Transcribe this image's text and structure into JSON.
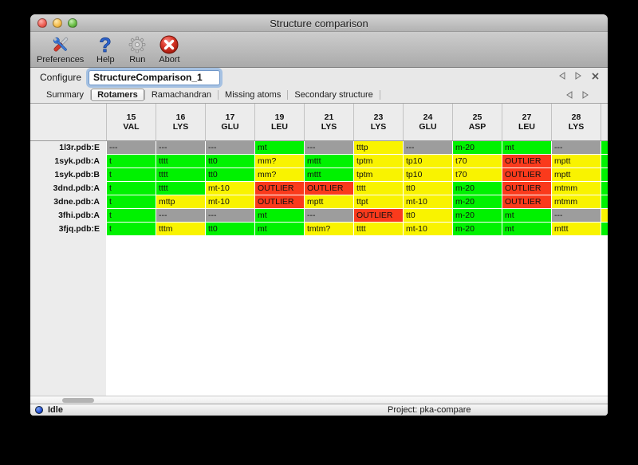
{
  "window": {
    "title": "Structure comparison"
  },
  "toolbar": {
    "items": [
      {
        "label": "Preferences",
        "icon": "tools-icon"
      },
      {
        "label": "Help",
        "icon": "help-icon"
      },
      {
        "label": "Run",
        "icon": "gear-icon"
      },
      {
        "label": "Abort",
        "icon": "abort-icon"
      }
    ]
  },
  "configure": {
    "label": "Configure",
    "value": "StructureComparison_1"
  },
  "tabs": {
    "items": [
      "Summary",
      "Rotamers",
      "Ramachandran",
      "Missing atoms",
      "Secondary structure"
    ],
    "selected": "Rotamers"
  },
  "table": {
    "columns": [
      {
        "num": "15",
        "res": "VAL"
      },
      {
        "num": "16",
        "res": "LYS"
      },
      {
        "num": "17",
        "res": "GLU"
      },
      {
        "num": "19",
        "res": "LEU"
      },
      {
        "num": "21",
        "res": "LYS"
      },
      {
        "num": "23",
        "res": "LYS"
      },
      {
        "num": "24",
        "res": "GLU"
      },
      {
        "num": "25",
        "res": "ASP"
      },
      {
        "num": "27",
        "res": "LEU"
      },
      {
        "num": "28",
        "res": "LYS"
      }
    ],
    "rows": [
      {
        "name": "1l3r.pdb:E",
        "cells": [
          [
            "---",
            "gray"
          ],
          [
            "---",
            "gray"
          ],
          [
            "---",
            "gray"
          ],
          [
            "mt",
            "green"
          ],
          [
            "---",
            "gray"
          ],
          [
            "tttp",
            "yellow"
          ],
          [
            "---",
            "gray"
          ],
          [
            "m-20",
            "green"
          ],
          [
            "mt",
            "green"
          ],
          [
            "---",
            "gray"
          ]
        ],
        "edge": "green"
      },
      {
        "name": "1syk.pdb:A",
        "cells": [
          [
            "t",
            "green"
          ],
          [
            "tttt",
            "green"
          ],
          [
            "tt0",
            "green"
          ],
          [
            "mm?",
            "yellow"
          ],
          [
            "mttt",
            "green"
          ],
          [
            "tptm",
            "yellow"
          ],
          [
            "tp10",
            "yellow"
          ],
          [
            "t70",
            "yellow"
          ],
          [
            "OUTLIER",
            "red"
          ],
          [
            "mptt",
            "yellow"
          ]
        ],
        "edge": "green"
      },
      {
        "name": "1syk.pdb:B",
        "cells": [
          [
            "t",
            "green"
          ],
          [
            "tttt",
            "green"
          ],
          [
            "tt0",
            "green"
          ],
          [
            "mm?",
            "yellow"
          ],
          [
            "mttt",
            "green"
          ],
          [
            "tptm",
            "yellow"
          ],
          [
            "tp10",
            "yellow"
          ],
          [
            "t70",
            "yellow"
          ],
          [
            "OUTLIER",
            "red"
          ],
          [
            "mptt",
            "yellow"
          ]
        ],
        "edge": "green"
      },
      {
        "name": "3dnd.pdb:A",
        "cells": [
          [
            "t",
            "green"
          ],
          [
            "tttt",
            "green"
          ],
          [
            "mt-10",
            "yellow"
          ],
          [
            "OUTLIER",
            "red"
          ],
          [
            "OUTLIER",
            "red"
          ],
          [
            "tttt",
            "yellow"
          ],
          [
            "tt0",
            "yellow"
          ],
          [
            "m-20",
            "green"
          ],
          [
            "OUTLIER",
            "red"
          ],
          [
            "mtmm",
            "yellow"
          ]
        ],
        "edge": "green"
      },
      {
        "name": "3dne.pdb:A",
        "cells": [
          [
            "t",
            "green"
          ],
          [
            "mttp",
            "yellow"
          ],
          [
            "mt-10",
            "yellow"
          ],
          [
            "OUTLIER",
            "red"
          ],
          [
            "mptt",
            "yellow"
          ],
          [
            "ttpt",
            "yellow"
          ],
          [
            "mt-10",
            "yellow"
          ],
          [
            "m-20",
            "green"
          ],
          [
            "OUTLIER",
            "red"
          ],
          [
            "mtmm",
            "yellow"
          ]
        ],
        "edge": "green"
      },
      {
        "name": "3fhi.pdb:A",
        "cells": [
          [
            "t",
            "green"
          ],
          [
            "---",
            "gray"
          ],
          [
            "---",
            "gray"
          ],
          [
            "mt",
            "green"
          ],
          [
            "---",
            "gray"
          ],
          [
            "OUTLIER",
            "red"
          ],
          [
            "tt0",
            "yellow"
          ],
          [
            "m-20",
            "green"
          ],
          [
            "mt",
            "green"
          ],
          [
            "---",
            "gray"
          ]
        ],
        "edge": "yellow"
      },
      {
        "name": "3fjq.pdb:E",
        "cells": [
          [
            "t",
            "green"
          ],
          [
            "tttm",
            "yellow"
          ],
          [
            "tt0",
            "green"
          ],
          [
            "mt",
            "green"
          ],
          [
            "tmtm?",
            "yellow"
          ],
          [
            "tttt",
            "yellow"
          ],
          [
            "mt-10",
            "yellow"
          ],
          [
            "m-20",
            "green"
          ],
          [
            "mt",
            "green"
          ],
          [
            "mttt",
            "yellow"
          ]
        ],
        "edge": "green"
      }
    ]
  },
  "statusbar": {
    "status": "Idle",
    "project": "Project: pka-compare"
  },
  "colors": {
    "green": "#00f200",
    "yellow": "#f9f300",
    "red": "#fa3a1c",
    "gray": "#9d9d9d"
  }
}
